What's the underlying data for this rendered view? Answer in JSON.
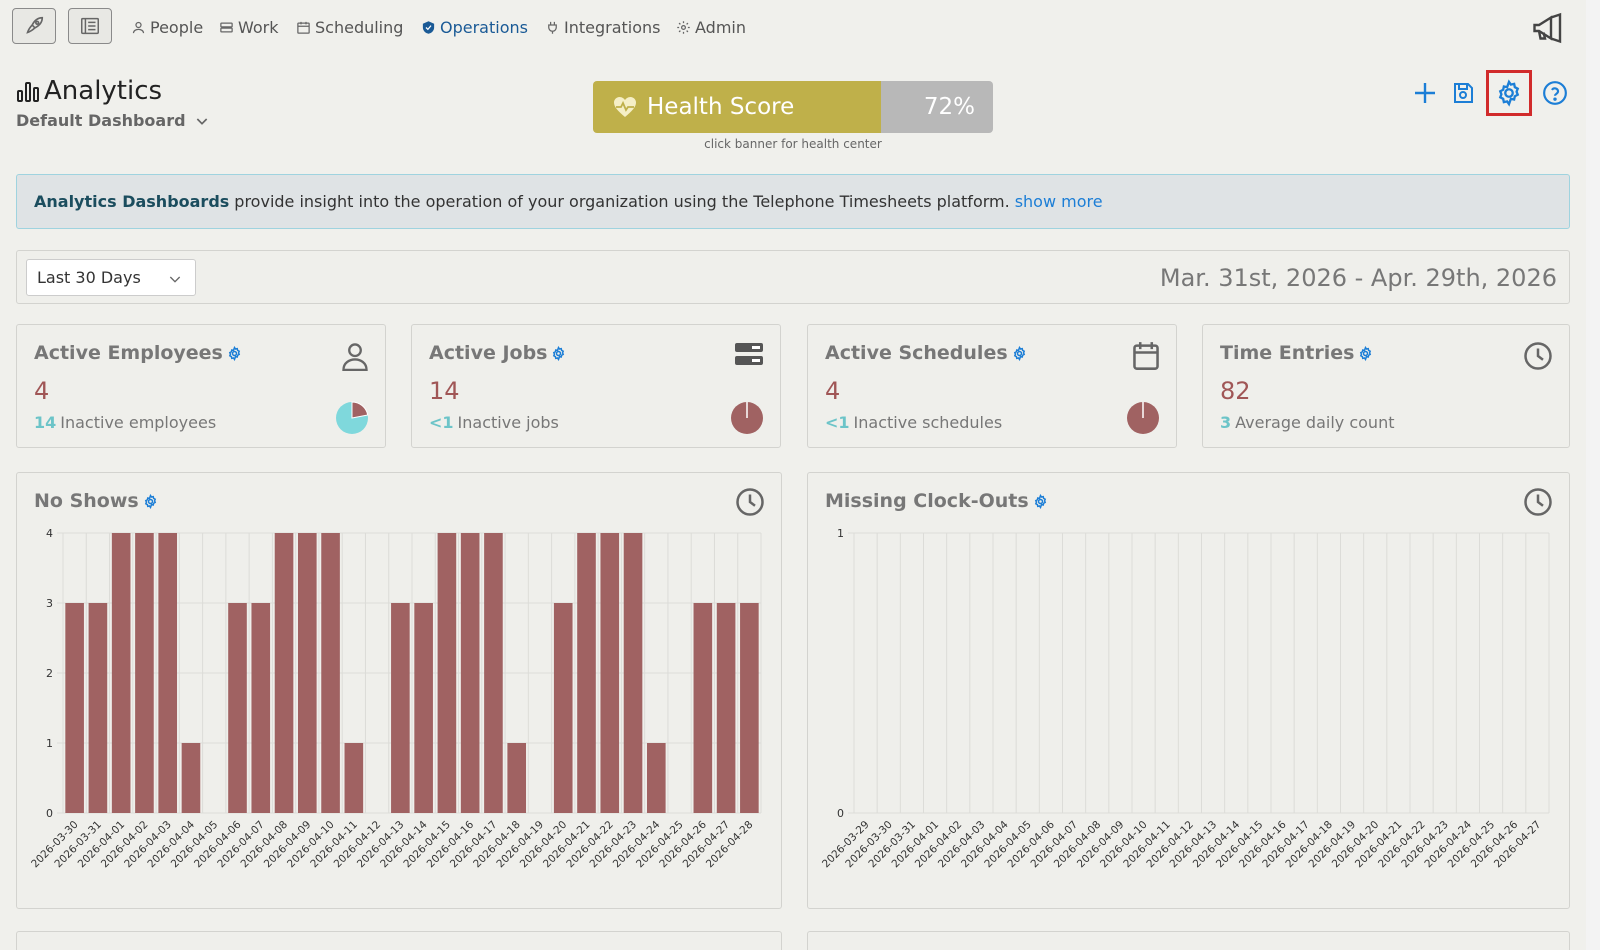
{
  "nav": {
    "items": [
      {
        "label": "People",
        "icon": "person-icon"
      },
      {
        "label": "Work",
        "icon": "work-icon"
      },
      {
        "label": "Scheduling",
        "icon": "calendar-icon"
      },
      {
        "label": "Operations",
        "icon": "shield-icon",
        "active": true
      },
      {
        "label": "Integrations",
        "icon": "plug-icon"
      },
      {
        "label": "Admin",
        "icon": "gear-icon"
      }
    ]
  },
  "header": {
    "title": "Analytics",
    "dashboard": "Default Dashboard",
    "health_label": "Health Score",
    "health_value": "72%",
    "health_fraction": 0.72,
    "health_hint": "click banner for health center"
  },
  "banner": {
    "bold": "Analytics Dashboards",
    "text": "provide insight into the operation of your organization using the Telephone Timesheets platform.",
    "link": "show more"
  },
  "range": {
    "selected": "Last 30 Days",
    "text": "Mar. 31st, 2026 - Apr. 29th, 2026"
  },
  "stats": [
    {
      "title": "Active Employees",
      "value": "4",
      "sub_num": "14",
      "sub_text": "Inactive employees",
      "icon": "person-icon",
      "pie_fraction": 0.22
    },
    {
      "title": "Active Jobs",
      "value": "14",
      "sub_num": "<1",
      "sub_text": "Inactive jobs",
      "icon": "server-icon",
      "pie_fraction": 0.0
    },
    {
      "title": "Active Schedules",
      "value": "4",
      "sub_num": "<1",
      "sub_text": "Inactive schedules",
      "icon": "calendar-icon",
      "pie_fraction": 0.0
    },
    {
      "title": "Time Entries",
      "value": "82",
      "sub_num": "3",
      "sub_text": "Average daily count",
      "icon": "clock-icon"
    }
  ],
  "colors": {
    "accent": "#1c7ed6",
    "bar": "#a06262",
    "pie_light": "#7fd8dc",
    "highlight": "#d12b2b",
    "health": "#bfb04a"
  },
  "chart_data": [
    {
      "type": "bar",
      "title": "No Shows",
      "categories": [
        "2026-03-30",
        "2026-03-31",
        "2026-04-01",
        "2026-04-02",
        "2026-04-03",
        "2026-04-04",
        "2026-04-05",
        "2026-04-06",
        "2026-04-07",
        "2026-04-08",
        "2026-04-09",
        "2026-04-10",
        "2026-04-11",
        "2026-04-12",
        "2026-04-13",
        "2026-04-14",
        "2026-04-15",
        "2026-04-16",
        "2026-04-17",
        "2026-04-18",
        "2026-04-19",
        "2026-04-20",
        "2026-04-21",
        "2026-04-22",
        "2026-04-23",
        "2026-04-24",
        "2026-04-25",
        "2026-04-26",
        "2026-04-27",
        "2026-04-28"
      ],
      "values": [
        3,
        3,
        4,
        4,
        4,
        1,
        0,
        3,
        3,
        4,
        4,
        4,
        1,
        0,
        3,
        3,
        4,
        4,
        4,
        1,
        0,
        3,
        4,
        4,
        4,
        1,
        0,
        3,
        3,
        3
      ],
      "ylim": [
        0,
        4
      ],
      "yticks": [
        "0",
        "1",
        "2",
        "3",
        "4"
      ],
      "grid": true
    },
    {
      "type": "bar",
      "title": "Missing Clock-Outs",
      "categories": [
        "2026-03-29",
        "2026-03-30",
        "2026-03-31",
        "2026-04-01",
        "2026-04-02",
        "2026-04-03",
        "2026-04-04",
        "2026-04-05",
        "2026-04-06",
        "2026-04-07",
        "2026-04-08",
        "2026-04-09",
        "2026-04-10",
        "2026-04-11",
        "2026-04-12",
        "2026-04-13",
        "2026-04-14",
        "2026-04-15",
        "2026-04-16",
        "2026-04-17",
        "2026-04-18",
        "2026-04-19",
        "2026-04-20",
        "2026-04-21",
        "2026-04-22",
        "2026-04-23",
        "2026-04-24",
        "2026-04-25",
        "2026-04-26",
        "2026-04-27"
      ],
      "values": [
        0,
        0,
        0,
        0,
        0,
        0,
        0,
        0,
        0,
        0,
        0,
        0,
        0,
        0,
        0,
        0,
        0,
        0,
        0,
        0,
        0,
        0,
        0,
        0,
        0,
        0,
        0,
        0,
        0,
        0
      ],
      "ylim": [
        0,
        1
      ],
      "yticks": [
        "0",
        "1"
      ],
      "grid": true
    }
  ]
}
